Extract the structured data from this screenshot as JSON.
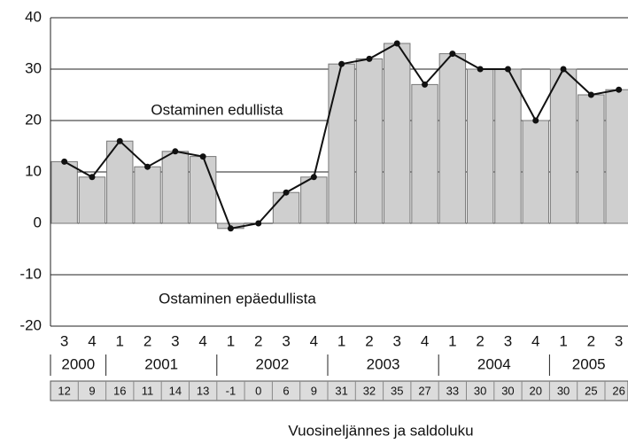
{
  "chart_data": {
    "type": "bar",
    "categories": [
      "3",
      "4",
      "1",
      "2",
      "3",
      "4",
      "1",
      "2",
      "3",
      "4",
      "1",
      "2",
      "3",
      "4",
      "1",
      "2",
      "3",
      "4",
      "1",
      "2",
      "3"
    ],
    "year_groups": [
      "2000",
      "2001",
      "2002",
      "2003",
      "2004",
      "2005"
    ],
    "values": [
      12,
      9,
      16,
      11,
      14,
      13,
      -1,
      0,
      6,
      9,
      31,
      32,
      35,
      27,
      33,
      30,
      30,
      20,
      30,
      25,
      26
    ],
    "color": "#cfcfcf",
    "line_color": "#111111",
    "overlay_line": true,
    "ylim": [
      -20,
      40
    ],
    "yticks": [
      -20,
      -10,
      0,
      10,
      20,
      30,
      40
    ],
    "grid": true,
    "annotations": [
      "Ostaminen edullista",
      "Ostaminen epäedullista"
    ],
    "xlabel": "Vuosineljännes ja saldoluku"
  }
}
